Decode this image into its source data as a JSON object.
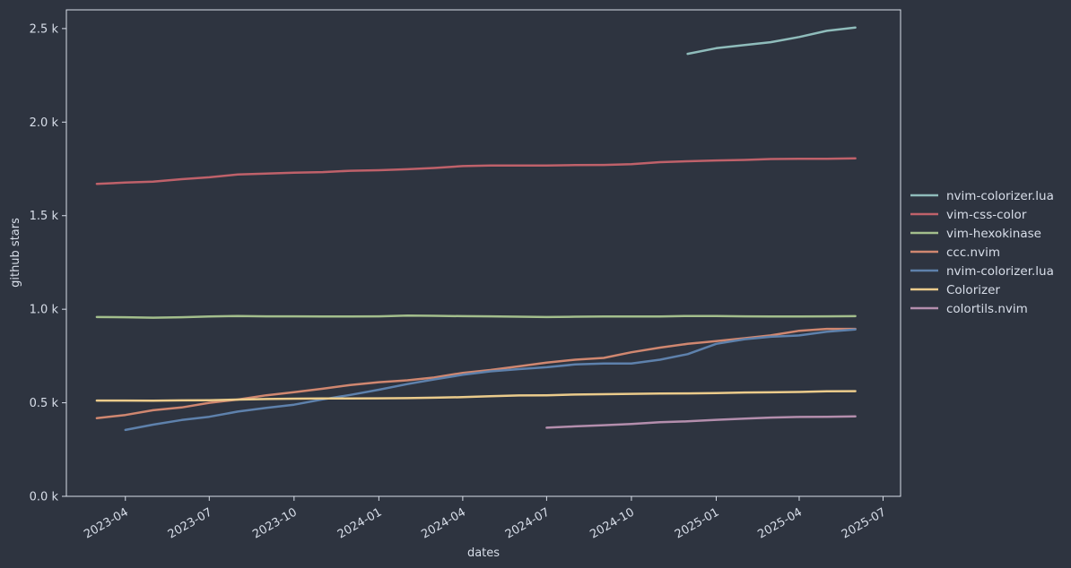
{
  "chart_data": {
    "type": "line",
    "title": "",
    "xlabel": "dates",
    "ylabel": "github stars",
    "ylim": [
      0,
      2600
    ],
    "xlim": [
      "2023-01-27",
      "2025-07-20"
    ],
    "grid": false,
    "legend_position": "right",
    "x_ticks": [
      {
        "date": "2023-04-01",
        "label": "2023-04"
      },
      {
        "date": "2023-07-01",
        "label": "2023-07"
      },
      {
        "date": "2023-10-01",
        "label": "2023-10"
      },
      {
        "date": "2024-01-01",
        "label": "2024-01"
      },
      {
        "date": "2024-04-01",
        "label": "2024-04"
      },
      {
        "date": "2024-07-01",
        "label": "2024-07"
      },
      {
        "date": "2024-10-01",
        "label": "2024-10"
      },
      {
        "date": "2025-01-01",
        "label": "2025-01"
      },
      {
        "date": "2025-04-01",
        "label": "2025-04"
      },
      {
        "date": "2025-07-01",
        "label": "2025-07"
      }
    ],
    "y_ticks": [
      {
        "value": 0,
        "label": "0.0 k"
      },
      {
        "value": 500,
        "label": "0.5 k"
      },
      {
        "value": 1000,
        "label": "1.0 k"
      },
      {
        "value": 1500,
        "label": "1.5 k"
      },
      {
        "value": 2000,
        "label": "2.0 k"
      },
      {
        "value": 2500,
        "label": "2.5 k"
      }
    ],
    "series": [
      {
        "name": "nvim-colorizer.lua",
        "color": "#8fbcbb",
        "points": [
          [
            "2024-12-01",
            2365
          ],
          [
            "2025-01-01",
            2395
          ],
          [
            "2025-02-01",
            2412
          ],
          [
            "2025-03-01",
            2427
          ],
          [
            "2025-04-01",
            2455
          ],
          [
            "2025-05-01",
            2488
          ],
          [
            "2025-06-01",
            2505
          ]
        ]
      },
      {
        "name": "vim-css-color",
        "color": "#bf616a",
        "points": [
          [
            "2023-03-01",
            1670
          ],
          [
            "2023-04-01",
            1677
          ],
          [
            "2023-05-01",
            1682
          ],
          [
            "2023-06-01",
            1695
          ],
          [
            "2023-07-01",
            1705
          ],
          [
            "2023-08-01",
            1720
          ],
          [
            "2023-09-01",
            1725
          ],
          [
            "2023-10-01",
            1730
          ],
          [
            "2023-11-01",
            1733
          ],
          [
            "2023-12-01",
            1740
          ],
          [
            "2024-01-01",
            1743
          ],
          [
            "2024-02-01",
            1748
          ],
          [
            "2024-03-01",
            1755
          ],
          [
            "2024-04-01",
            1765
          ],
          [
            "2024-05-01",
            1768
          ],
          [
            "2024-06-01",
            1768
          ],
          [
            "2024-07-01",
            1768
          ],
          [
            "2024-08-01",
            1770
          ],
          [
            "2024-09-01",
            1771
          ],
          [
            "2024-10-01",
            1775
          ],
          [
            "2024-11-01",
            1786
          ],
          [
            "2024-12-01",
            1791
          ],
          [
            "2025-01-01",
            1795
          ],
          [
            "2025-02-01",
            1798
          ],
          [
            "2025-03-01",
            1803
          ],
          [
            "2025-04-01",
            1804
          ],
          [
            "2025-05-01",
            1804
          ],
          [
            "2025-06-01",
            1806
          ]
        ]
      },
      {
        "name": "vim-hexokinase",
        "color": "#a3be8c",
        "points": [
          [
            "2023-03-01",
            958
          ],
          [
            "2023-04-01",
            957
          ],
          [
            "2023-05-01",
            955
          ],
          [
            "2023-06-01",
            957
          ],
          [
            "2023-07-01",
            961
          ],
          [
            "2023-08-01",
            964
          ],
          [
            "2023-09-01",
            962
          ],
          [
            "2023-10-01",
            962
          ],
          [
            "2023-11-01",
            961
          ],
          [
            "2023-12-01",
            961
          ],
          [
            "2024-01-01",
            962
          ],
          [
            "2024-02-01",
            966
          ],
          [
            "2024-03-01",
            965
          ],
          [
            "2024-04-01",
            963
          ],
          [
            "2024-05-01",
            962
          ],
          [
            "2024-06-01",
            960
          ],
          [
            "2024-07-01",
            958
          ],
          [
            "2024-08-01",
            960
          ],
          [
            "2024-09-01",
            961
          ],
          [
            "2024-10-01",
            961
          ],
          [
            "2024-11-01",
            961
          ],
          [
            "2024-12-01",
            964
          ],
          [
            "2025-01-01",
            964
          ],
          [
            "2025-02-01",
            962
          ],
          [
            "2025-03-01",
            961
          ],
          [
            "2025-04-01",
            961
          ],
          [
            "2025-05-01",
            962
          ],
          [
            "2025-06-01",
            963
          ]
        ]
      },
      {
        "name": "ccc.nvim",
        "color": "#d08770",
        "points": [
          [
            "2023-03-01",
            418
          ],
          [
            "2023-04-01",
            435
          ],
          [
            "2023-05-01",
            460
          ],
          [
            "2023-06-01",
            475
          ],
          [
            "2023-07-01",
            500
          ],
          [
            "2023-08-01",
            517
          ],
          [
            "2023-09-01",
            540
          ],
          [
            "2023-10-01",
            557
          ],
          [
            "2023-11-01",
            575
          ],
          [
            "2023-12-01",
            595
          ],
          [
            "2024-01-01",
            610
          ],
          [
            "2024-02-01",
            620
          ],
          [
            "2024-03-01",
            635
          ],
          [
            "2024-04-01",
            660
          ],
          [
            "2024-05-01",
            675
          ],
          [
            "2024-06-01",
            695
          ],
          [
            "2024-07-01",
            715
          ],
          [
            "2024-08-01",
            730
          ],
          [
            "2024-09-01",
            740
          ],
          [
            "2024-10-01",
            770
          ],
          [
            "2024-11-01",
            795
          ],
          [
            "2024-12-01",
            815
          ],
          [
            "2025-01-01",
            830
          ],
          [
            "2025-02-01",
            845
          ],
          [
            "2025-03-01",
            860
          ],
          [
            "2025-04-01",
            885
          ],
          [
            "2025-05-01",
            895
          ],
          [
            "2025-06-01",
            895
          ]
        ]
      },
      {
        "name": "nvim-colorizer.lua",
        "color": "#5e81ac",
        "points": [
          [
            "2023-04-01",
            355
          ],
          [
            "2023-05-01",
            383
          ],
          [
            "2023-06-01",
            408
          ],
          [
            "2023-07-01",
            425
          ],
          [
            "2023-08-01",
            453
          ],
          [
            "2023-09-01",
            473
          ],
          [
            "2023-10-01",
            490
          ],
          [
            "2023-11-01",
            518
          ],
          [
            "2023-12-01",
            542
          ],
          [
            "2024-01-01",
            570
          ],
          [
            "2024-02-01",
            600
          ],
          [
            "2024-03-01",
            625
          ],
          [
            "2024-04-01",
            650
          ],
          [
            "2024-05-01",
            668
          ],
          [
            "2024-06-01",
            680
          ],
          [
            "2024-07-01",
            690
          ],
          [
            "2024-08-01",
            705
          ],
          [
            "2024-09-01",
            710
          ],
          [
            "2024-10-01",
            710
          ],
          [
            "2024-11-01",
            730
          ],
          [
            "2024-12-01",
            760
          ],
          [
            "2025-01-01",
            815
          ],
          [
            "2025-02-01",
            840
          ],
          [
            "2025-03-01",
            853
          ],
          [
            "2025-04-01",
            860
          ],
          [
            "2025-05-01",
            880
          ],
          [
            "2025-06-01",
            892
          ]
        ]
      },
      {
        "name": "Colorizer",
        "color": "#ebcb8b",
        "points": [
          [
            "2023-03-01",
            512
          ],
          [
            "2023-04-01",
            512
          ],
          [
            "2023-05-01",
            511
          ],
          [
            "2023-06-01",
            513
          ],
          [
            "2023-07-01",
            514
          ],
          [
            "2023-08-01",
            517
          ],
          [
            "2023-09-01",
            520
          ],
          [
            "2023-10-01",
            522
          ],
          [
            "2023-11-01",
            523
          ],
          [
            "2023-12-01",
            523
          ],
          [
            "2024-01-01",
            524
          ],
          [
            "2024-02-01",
            525
          ],
          [
            "2024-03-01",
            527
          ],
          [
            "2024-04-01",
            530
          ],
          [
            "2024-05-01",
            535
          ],
          [
            "2024-06-01",
            539
          ],
          [
            "2024-07-01",
            540
          ],
          [
            "2024-08-01",
            544
          ],
          [
            "2024-09-01",
            546
          ],
          [
            "2024-10-01",
            548
          ],
          [
            "2024-11-01",
            549
          ],
          [
            "2024-12-01",
            550
          ],
          [
            "2025-01-01",
            552
          ],
          [
            "2025-02-01",
            555
          ],
          [
            "2025-03-01",
            556
          ],
          [
            "2025-04-01",
            558
          ],
          [
            "2025-05-01",
            561
          ],
          [
            "2025-06-01",
            562
          ]
        ]
      },
      {
        "name": "colortils.nvim",
        "color": "#b48ead",
        "points": [
          [
            "2024-07-01",
            367
          ],
          [
            "2024-08-01",
            374
          ],
          [
            "2024-09-01",
            380
          ],
          [
            "2024-10-01",
            387
          ],
          [
            "2024-11-01",
            396
          ],
          [
            "2024-12-01",
            401
          ],
          [
            "2025-01-01",
            409
          ],
          [
            "2025-02-01",
            415
          ],
          [
            "2025-03-01",
            421
          ],
          [
            "2025-04-01",
            424
          ],
          [
            "2025-05-01",
            425
          ],
          [
            "2025-06-01",
            427
          ]
        ]
      }
    ]
  }
}
